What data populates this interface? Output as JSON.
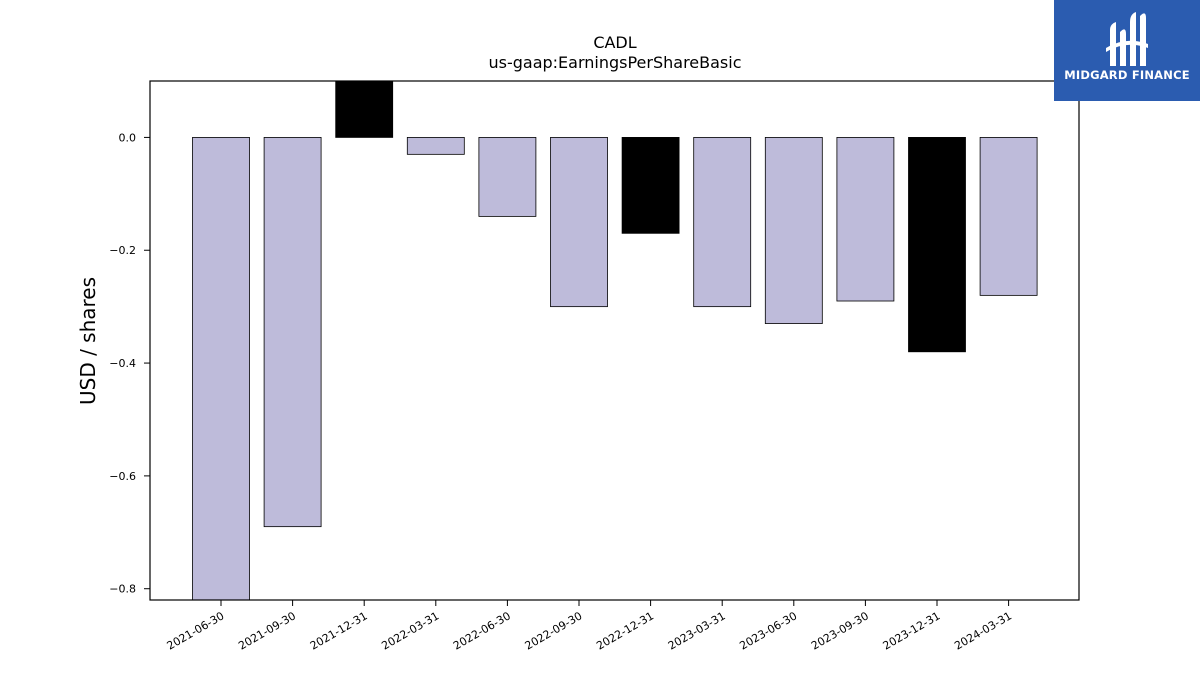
{
  "brand": {
    "name": "MIDGARD FINANCE",
    "bg_color": "#2b5cb0",
    "icon": "midgard-logo-icon"
  },
  "chart_data": {
    "type": "bar",
    "title": "CADL",
    "subtitle": "us-gaap:EarningsPerShareBasic",
    "xlabel": "",
    "ylabel": "USD / shares",
    "categories": [
      "2021-06-30",
      "2021-09-30",
      "2021-12-31",
      "2022-03-31",
      "2022-06-30",
      "2022-09-30",
      "2022-12-31",
      "2023-03-31",
      "2023-06-30",
      "2023-09-30",
      "2023-12-31",
      "2024-03-31"
    ],
    "values": [
      -0.82,
      -0.69,
      0.1,
      -0.03,
      -0.14,
      -0.3,
      -0.17,
      -0.3,
      -0.33,
      -0.29,
      -0.38,
      -0.28
    ],
    "bar_colors": [
      "#bebbda",
      "#bebbda",
      "#000000",
      "#bebbda",
      "#bebbda",
      "#bebbda",
      "#000000",
      "#bebbda",
      "#bebbda",
      "#bebbda",
      "#000000",
      "#bebbda"
    ],
    "ylim": [
      -0.82,
      0.1
    ],
    "yticks": [
      0.0,
      -0.2,
      -0.4,
      -0.6,
      -0.8
    ],
    "ytick_labels": [
      "0.0",
      "−0.2",
      "−0.4",
      "−0.6",
      "−0.8"
    ],
    "grid": false,
    "legend": "none"
  }
}
